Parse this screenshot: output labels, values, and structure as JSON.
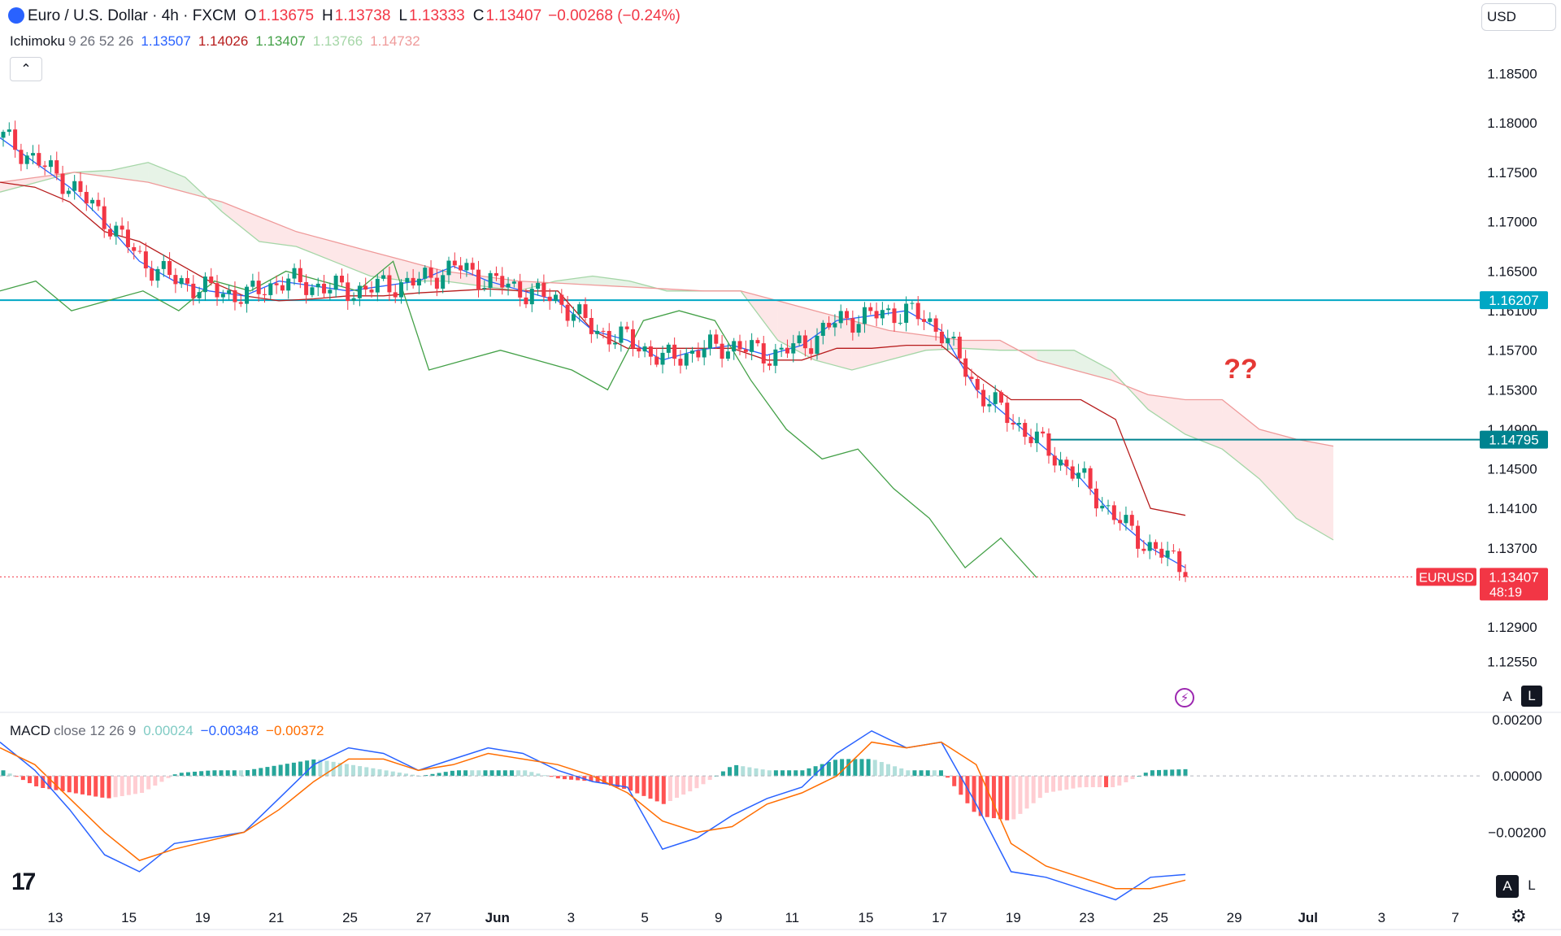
{
  "header": {
    "symbol": "Euro / U.S. Dollar · 4h · FXCM",
    "open_label": "O",
    "open": "1.13675",
    "high_label": "H",
    "high": "1.13738",
    "low_label": "L",
    "low": "1.13333",
    "close_label": "C",
    "close": "1.13407",
    "change": "−0.00268 (−0.24%)"
  },
  "currency_button": "USD",
  "ichimoku_header": {
    "name": "Ichimoku",
    "params": "9 26 52 26",
    "tenkan": "1.13507",
    "kijun": "1.14026",
    "chikou": "1.13407",
    "span_a": "1.13766",
    "span_b": "1.14732"
  },
  "macd_header": {
    "name": "MACD",
    "params": "close 12 26 9",
    "histogram": "0.00024",
    "macd": "−0.00348",
    "signal": "−0.00372"
  },
  "price_labels": {
    "resistance": "1.16207",
    "support": "1.14795",
    "symbol_tag": "EURUSD",
    "last_price": "1.13407",
    "countdown": "48:19"
  },
  "annotation": "??",
  "scale_buttons": {
    "auto": "A",
    "log": "L"
  },
  "colors": {
    "up": "#089981",
    "down": "#f23645",
    "tenkan": "#2962ff",
    "kijun": "#b71c1c",
    "chikou": "#43a047",
    "span_a": "#a5d6a7",
    "span_b": "#ef9a9a",
    "level": "#00a7c4",
    "macd": "#2962ff",
    "signal": "#ff6d00"
  },
  "chart_data": [
    {
      "type": "candlestick",
      "title": "Euro / U.S. Dollar · 4h · FXCM",
      "y_axis_ticks": [
        "1.18500",
        "1.18000",
        "1.17500",
        "1.17000",
        "1.16500",
        "1.16100",
        "1.15700",
        "1.15300",
        "1.14900",
        "1.14500",
        "1.14100",
        "1.13700",
        "1.12900",
        "1.12550"
      ],
      "x_axis_ticks": [
        "13",
        "15",
        "19",
        "21",
        "25",
        "27",
        "Jun",
        "3",
        "5",
        "9",
        "11",
        "15",
        "17",
        "19",
        "23",
        "25",
        "29",
        "Jul",
        "3",
        "7"
      ],
      "ylim": [
        1.1225,
        1.1875
      ],
      "horizontal_levels": [
        1.16207,
        1.14795
      ],
      "last_price": 1.13407,
      "series": [
        {
          "name": "Ichimoku Tenkan",
          "values": [
            1.1785,
            1.176,
            1.1735,
            1.17,
            1.166,
            1.164,
            1.163,
            1.1625,
            1.164,
            1.1635,
            1.163,
            1.1635,
            1.164,
            1.1655,
            1.164,
            1.163,
            1.162,
            1.159,
            1.158,
            1.156,
            1.157,
            1.1575,
            1.1565,
            1.1575,
            1.16,
            1.1605,
            1.161,
            1.159,
            1.153,
            1.15,
            1.147,
            1.144,
            1.14,
            1.137,
            1.135
          ]
        },
        {
          "name": "Ichimoku Kijun",
          "values": [
            1.174,
            1.1735,
            1.172,
            1.169,
            1.168,
            1.166,
            1.164,
            1.1625,
            1.162,
            1.1622,
            1.1625,
            1.1625,
            1.1628,
            1.163,
            1.1632,
            1.163,
            1.163,
            1.159,
            1.1572,
            1.1572,
            1.1572,
            1.1572,
            1.156,
            1.156,
            1.1572,
            1.1572,
            1.1575,
            1.1575,
            1.1545,
            1.152,
            1.152,
            1.152,
            1.15,
            1.141,
            1.1403
          ]
        },
        {
          "name": "Ichimoku Chikou",
          "values": [
            1.163,
            1.164,
            1.161,
            1.162,
            1.163,
            1.161,
            1.164,
            1.163,
            1.165,
            1.164,
            1.163,
            1.166,
            1.155,
            1.156,
            1.157,
            1.156,
            1.155,
            1.153,
            1.16,
            1.161,
            1.16,
            1.154,
            1.149,
            1.146,
            1.147,
            1.143,
            1.14,
            1.135,
            1.138,
            1.134
          ]
        },
        {
          "name": "Ichimoku Span A",
          "values": [
            1.173,
            1.174,
            1.175,
            1.1752,
            1.176,
            1.1745,
            1.171,
            1.168,
            1.1675,
            1.166,
            1.1645,
            1.164,
            1.164,
            1.1635,
            1.163,
            1.164,
            1.1645,
            1.164,
            1.163,
            1.163,
            1.163,
            1.158,
            1.156,
            1.155,
            1.156,
            1.157,
            1.1572,
            1.157,
            1.157,
            1.157,
            1.155,
            1.151,
            1.1485,
            1.147,
            1.144,
            1.14,
            1.1378
          ]
        },
        {
          "name": "Ichimoku Span B",
          "values": [
            1.174,
            1.1745,
            1.175,
            1.1745,
            1.174,
            1.173,
            1.172,
            1.1705,
            1.169,
            1.168,
            1.167,
            1.166,
            1.165,
            1.1645,
            1.164,
            1.1638,
            1.1636,
            1.1634,
            1.1632,
            1.163,
            1.163,
            1.162,
            1.161,
            1.16,
            1.159,
            1.1585,
            1.158,
            1.158,
            1.156,
            1.155,
            1.154,
            1.1525,
            1.152,
            1.152,
            1.149,
            1.148,
            1.1473
          ]
        }
      ]
    },
    {
      "type": "bar",
      "title": "MACD close 12 26 9",
      "y_axis_ticks": [
        "0.00200",
        "0.00000",
        "−0.00200"
      ],
      "ylim": [
        -0.0045,
        0.0022
      ],
      "series": [
        {
          "name": "MACD",
          "values": [
            0.0012,
            0.0002,
            -0.0012,
            -0.0028,
            -0.0034,
            -0.0024,
            -0.0022,
            -0.002,
            -0.0008,
            0.0004,
            0.001,
            0.0008,
            0.0002,
            0.0006,
            0.001,
            0.0008,
            0.0002,
            -0.0002,
            -0.0004,
            -0.0026,
            -0.0022,
            -0.0014,
            -0.0008,
            -0.0004,
            0.0008,
            0.0016,
            0.001,
            0.0012,
            -0.001,
            -0.0034,
            -0.0036,
            -0.004,
            -0.0044,
            -0.0036,
            -0.0035
          ]
        },
        {
          "name": "Signal",
          "values": [
            0.001,
            0.0004,
            -0.0008,
            -0.002,
            -0.003,
            -0.0026,
            -0.0023,
            -0.002,
            -0.0012,
            -0.0002,
            0.0006,
            0.0006,
            0.0002,
            0.0004,
            0.0008,
            0.0006,
            0.0004,
            0.0,
            -0.0006,
            -0.0016,
            -0.002,
            -0.0018,
            -0.001,
            -0.0006,
            0.0,
            0.0012,
            0.001,
            0.0012,
            0.0004,
            -0.0024,
            -0.0032,
            -0.0036,
            -0.004,
            -0.004,
            -0.0037
          ]
        },
        {
          "name": "Histogram",
          "values": [
            0.0002,
            -0.0004,
            -0.0006,
            -0.0008,
            -0.0006,
            0.0001,
            0.0002,
            0.0002,
            0.0004,
            0.0006,
            0.0004,
            0.0002,
            0.0,
            0.0002,
            0.0002,
            0.0002,
            -0.0001,
            -0.0002,
            -0.0005,
            -0.001,
            -0.0004,
            0.0004,
            0.0002,
            0.0002,
            0.0006,
            0.0006,
            0.0002,
            0.0002,
            -0.0014,
            -0.0016,
            -0.0006,
            -0.0004,
            -0.0004,
            0.0002,
            0.00024
          ]
        }
      ]
    }
  ]
}
